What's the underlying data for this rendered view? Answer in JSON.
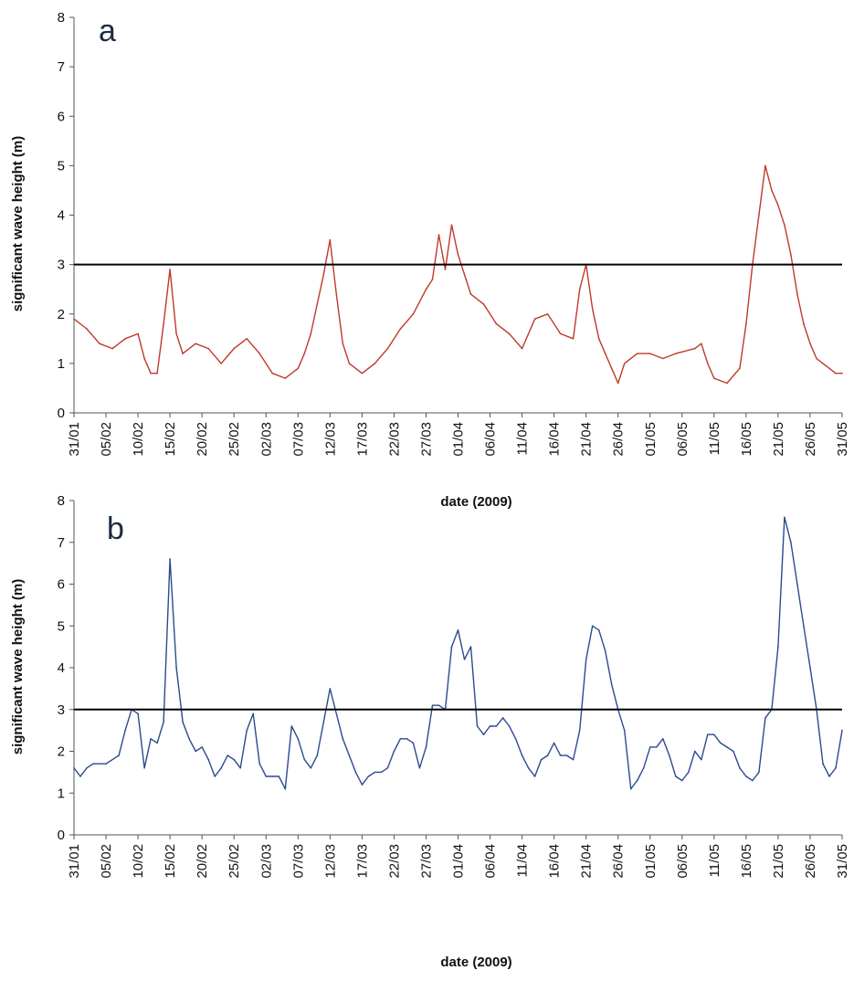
{
  "chart_data": [
    {
      "type": "line",
      "panel_label": "a",
      "xlabel": "date (2009)",
      "ylabel": "significant wave height (m)",
      "ylim": [
        0,
        8
      ],
      "yticks": [
        "0",
        "1",
        "2",
        "3",
        "4",
        "5",
        "6",
        "7",
        "8"
      ],
      "xticks": [
        "31/01",
        "05/02",
        "10/02",
        "15/02",
        "20/02",
        "25/02",
        "02/03",
        "07/03",
        "12/03",
        "17/03",
        "22/03",
        "27/03",
        "01/04",
        "06/04",
        "11/04",
        "16/04",
        "21/04",
        "26/04",
        "01/05",
        "06/05",
        "11/05",
        "16/05",
        "21/05",
        "26/05",
        "31/05"
      ],
      "series_color": "#c0392b",
      "threshold": {
        "y": 3,
        "color": "#000000"
      },
      "x": [
        "31/01",
        "02/02",
        "04/02",
        "06/02",
        "08/02",
        "10/02",
        "11/02",
        "12/02",
        "13/02",
        "14/02",
        "15/02",
        "16/02",
        "17/02",
        "19/02",
        "21/02",
        "23/02",
        "25/02",
        "27/02",
        "01/03",
        "03/03",
        "05/03",
        "07/03",
        "08/03",
        "09/03",
        "10/03",
        "11/03",
        "12/03",
        "13/03",
        "14/03",
        "15/03",
        "17/03",
        "19/03",
        "21/03",
        "23/03",
        "25/03",
        "27/03",
        "28/03",
        "29/03",
        "30/03",
        "31/03",
        "01/04",
        "02/04",
        "03/04",
        "05/04",
        "07/04",
        "09/04",
        "11/04",
        "13/04",
        "15/04",
        "17/04",
        "19/04",
        "20/04",
        "21/04",
        "22/04",
        "23/04",
        "24/04",
        "25/04",
        "26/04",
        "27/04",
        "29/04",
        "01/05",
        "03/05",
        "05/05",
        "08/05",
        "09/05",
        "10/05",
        "11/05",
        "13/05",
        "15/05",
        "16/05",
        "17/05",
        "18/05",
        "19/05",
        "20/05",
        "21/05",
        "22/05",
        "23/05",
        "24/05",
        "25/05",
        "26/05",
        "27/05",
        "28/05",
        "29/05",
        "30/05",
        "31/05"
      ],
      "values": [
        1.9,
        1.7,
        1.4,
        1.3,
        1.5,
        1.6,
        1.1,
        0.8,
        0.8,
        1.8,
        2.9,
        1.6,
        1.2,
        1.4,
        1.3,
        1.0,
        1.3,
        1.5,
        1.2,
        0.8,
        0.7,
        0.9,
        1.2,
        1.6,
        2.2,
        2.8,
        3.5,
        2.4,
        1.4,
        1.0,
        0.8,
        1.0,
        1.3,
        1.7,
        2.0,
        2.5,
        2.7,
        3.6,
        2.9,
        3.8,
        3.2,
        2.8,
        2.4,
        2.2,
        1.8,
        1.6,
        1.3,
        1.9,
        2.0,
        1.6,
        1.5,
        2.5,
        3.0,
        2.1,
        1.5,
        1.2,
        0.9,
        0.6,
        1.0,
        1.2,
        1.2,
        1.1,
        1.2,
        1.3,
        1.4,
        1.0,
        0.7,
        0.6,
        0.9,
        1.8,
        3.0,
        4.0,
        5.0,
        4.5,
        4.2,
        3.8,
        3.2,
        2.4,
        1.8,
        1.4,
        1.1,
        1.0,
        0.9,
        0.8,
        0.8
      ]
    },
    {
      "type": "line",
      "panel_label": "b",
      "xlabel": "date (2009)",
      "ylabel": "significant wave height (m)",
      "ylim": [
        0,
        8
      ],
      "yticks": [
        "0",
        "1",
        "2",
        "3",
        "4",
        "5",
        "6",
        "7",
        "8"
      ],
      "xticks": [
        "31/01",
        "05/02",
        "10/02",
        "15/02",
        "20/02",
        "25/02",
        "02/03",
        "07/03",
        "12/03",
        "17/03",
        "22/03",
        "27/03",
        "01/04",
        "06/04",
        "11/04",
        "16/04",
        "21/04",
        "26/04",
        "01/05",
        "06/05",
        "11/05",
        "16/05",
        "21/05",
        "26/05",
        "31/05"
      ],
      "series_color": "#2c4a8f",
      "threshold": {
        "y": 3,
        "color": "#000000"
      },
      "x": [
        "31/01",
        "01/02",
        "02/02",
        "03/02",
        "05/02",
        "07/02",
        "08/02",
        "09/02",
        "10/02",
        "11/02",
        "12/02",
        "13/02",
        "14/02",
        "15/02",
        "16/02",
        "17/02",
        "18/02",
        "19/02",
        "20/02",
        "21/02",
        "22/02",
        "23/02",
        "24/02",
        "25/02",
        "26/02",
        "27/02",
        "28/02",
        "01/03",
        "02/03",
        "03/03",
        "04/03",
        "05/03",
        "06/03",
        "07/03",
        "08/03",
        "09/03",
        "10/03",
        "11/03",
        "12/03",
        "13/03",
        "14/03",
        "15/03",
        "16/03",
        "17/03",
        "18/03",
        "19/03",
        "20/03",
        "21/03",
        "22/03",
        "23/03",
        "24/03",
        "25/03",
        "26/03",
        "27/03",
        "28/03",
        "29/03",
        "30/03",
        "31/03",
        "01/04",
        "02/04",
        "03/04",
        "04/04",
        "05/04",
        "06/04",
        "07/04",
        "08/04",
        "09/04",
        "10/04",
        "11/04",
        "12/04",
        "13/04",
        "14/04",
        "15/04",
        "16/04",
        "17/04",
        "18/04",
        "19/04",
        "20/04",
        "21/04",
        "22/04",
        "23/04",
        "24/04",
        "25/04",
        "26/04",
        "27/04",
        "28/04",
        "29/04",
        "30/04",
        "01/05",
        "02/05",
        "03/05",
        "04/05",
        "05/05",
        "06/05",
        "07/05",
        "08/05",
        "09/05",
        "10/05",
        "11/05",
        "12/05",
        "13/05",
        "14/05",
        "15/05",
        "16/05",
        "17/05",
        "18/05",
        "19/05",
        "20/05",
        "21/05",
        "22/05",
        "23/05",
        "24/05",
        "25/05",
        "26/05",
        "27/05",
        "28/05",
        "29/05",
        "30/05",
        "31/05"
      ],
      "values": [
        1.6,
        1.4,
        1.6,
        1.7,
        1.7,
        1.9,
        2.5,
        3.0,
        2.9,
        1.6,
        2.3,
        2.2,
        2.7,
        6.6,
        4.0,
        2.7,
        2.3,
        2.0,
        2.1,
        1.8,
        1.4,
        1.6,
        1.9,
        1.8,
        1.6,
        2.5,
        2.9,
        1.7,
        1.4,
        1.4,
        1.4,
        1.1,
        2.6,
        2.3,
        1.8,
        1.6,
        1.9,
        2.7,
        3.5,
        2.9,
        2.3,
        1.9,
        1.5,
        1.2,
        1.4,
        1.5,
        1.5,
        1.6,
        2.0,
        2.3,
        2.3,
        2.2,
        1.6,
        2.1,
        3.1,
        3.1,
        3.0,
        4.5,
        4.9,
        4.2,
        4.5,
        2.6,
        2.4,
        2.6,
        2.6,
        2.8,
        2.6,
        2.3,
        1.9,
        1.6,
        1.4,
        1.8,
        1.9,
        2.2,
        1.9,
        1.9,
        1.8,
        2.5,
        4.2,
        5.0,
        4.9,
        4.4,
        3.6,
        3.0,
        2.5,
        1.1,
        1.3,
        1.6,
        2.1,
        2.1,
        2.3,
        1.9,
        1.4,
        1.3,
        1.5,
        2.0,
        1.8,
        2.4,
        2.4,
        2.2,
        2.1,
        2.0,
        1.6,
        1.4,
        1.3,
        1.5,
        2.8,
        3.0,
        4.5,
        7.6,
        7.0,
        6.0,
        5.0,
        4.0,
        3.0,
        1.7,
        1.4,
        1.6,
        2.5
      ]
    }
  ]
}
